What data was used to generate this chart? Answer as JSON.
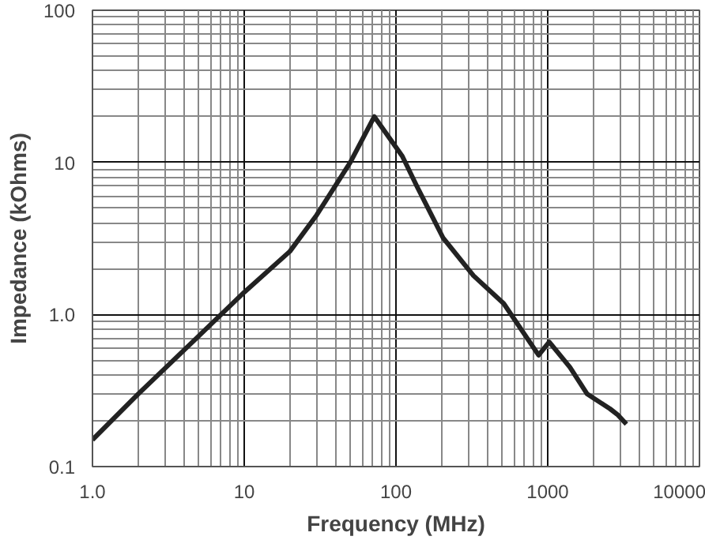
{
  "chart_data": {
    "type": "line",
    "xlabel": "Frequency (MHz)",
    "ylabel": "Impedance (kOhms)",
    "log": "xy",
    "grid": true,
    "xlim": [
      1,
      10000
    ],
    "ylim": [
      0.1,
      100
    ],
    "xticks": [
      {
        "value": 1,
        "label": "1.0"
      },
      10,
      100,
      1000,
      10000
    ],
    "yticks": [
      0.1,
      {
        "value": 1,
        "label": "1.0"
      },
      10,
      100
    ],
    "series": [
      {
        "color": "#222222",
        "x": [
          1,
          2,
          5,
          10,
          20,
          30,
          50,
          72,
          110,
          138,
          204,
          324,
          513,
          871,
          1023,
          1400,
          1820,
          2570,
          2880,
          3300
        ],
        "values": [
          0.15,
          0.3,
          0.72,
          1.4,
          2.6,
          4.5,
          10,
          20,
          11,
          6.9,
          3.2,
          1.8,
          1.18,
          0.54,
          0.66,
          0.45,
          0.3,
          0.24,
          0.22,
          0.19
        ]
      }
    ]
  }
}
